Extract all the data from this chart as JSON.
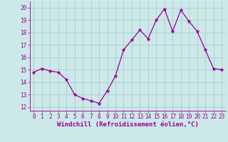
{
  "x": [
    0,
    1,
    2,
    3,
    4,
    5,
    6,
    7,
    8,
    9,
    10,
    11,
    12,
    13,
    14,
    15,
    16,
    17,
    18,
    19,
    20,
    21,
    22,
    23
  ],
  "y": [
    14.8,
    15.1,
    14.9,
    14.8,
    14.2,
    13.0,
    12.7,
    12.5,
    12.3,
    13.3,
    14.5,
    16.6,
    17.4,
    18.2,
    17.5,
    19.0,
    19.9,
    18.1,
    19.8,
    18.9,
    18.1,
    16.6,
    15.1,
    15.0
  ],
  "line_color": "#990099",
  "marker": "*",
  "marker_size": 3.5,
  "bg_color": "#cce8e8",
  "grid_color": "#aacece",
  "xlabel": "Windchill (Refroidissement éolien,°C)",
  "ylabel_ticks": [
    12,
    13,
    14,
    15,
    16,
    17,
    18,
    19,
    20
  ],
  "xticks": [
    0,
    1,
    2,
    3,
    4,
    5,
    6,
    7,
    8,
    9,
    10,
    11,
    12,
    13,
    14,
    15,
    16,
    17,
    18,
    19,
    20,
    21,
    22,
    23
  ],
  "ylim": [
    11.7,
    20.5
  ],
  "xlim": [
    -0.5,
    23.5
  ],
  "label_fontsize": 5.5,
  "xlabel_fontsize": 6.5
}
